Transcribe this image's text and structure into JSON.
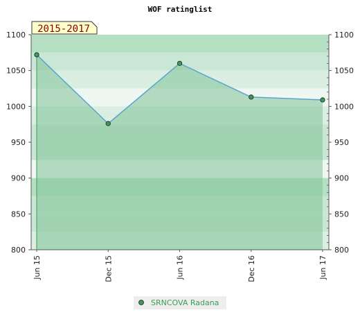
{
  "chart_data": {
    "type": "area",
    "title": "WOF ratinglist",
    "period_badge": "2015-2017",
    "xlabel": "",
    "ylabel": "",
    "categories": [
      "Jun 15",
      "Dec 15",
      "Jun 16",
      "Dec 16",
      "Jun 17"
    ],
    "ylim": [
      800,
      1100
    ],
    "yticks": [
      800,
      850,
      900,
      950,
      1000,
      1050,
      1100
    ],
    "grid": true,
    "legend_position": "bottom-center",
    "series": [
      {
        "name": "SRNCOVA Radana",
        "x": [
          "Jun 15",
          "Dec 15",
          "Jun 16",
          "Dec 16",
          "Jun 17"
        ],
        "values": [
          1072,
          976,
          1060,
          1013,
          1009
        ],
        "line_color": "#5ba3cf",
        "marker_color": "#3d9a55",
        "fill_color": "#7fc297"
      }
    ],
    "bands": [
      {
        "from": 1075,
        "to": 1100,
        "color": "#b5dfc3"
      },
      {
        "from": 1050,
        "to": 1075,
        "color": "#c9e7d4"
      },
      {
        "from": 1025,
        "to": 1050,
        "color": "#daeee2"
      },
      {
        "from": 1000,
        "to": 1025,
        "color": "#eef7f1"
      },
      {
        "from": 975,
        "to": 1000,
        "color": "#daeee2"
      },
      {
        "from": 950,
        "to": 975,
        "color": "#c9e7d4"
      },
      {
        "from": 925,
        "to": 950,
        "color": "#c9e7d4"
      },
      {
        "from": 900,
        "to": 925,
        "color": "#eef7f1"
      },
      {
        "from": 875,
        "to": 900,
        "color": "#b5dfc3"
      },
      {
        "from": 850,
        "to": 875,
        "color": "#c9e7d4"
      },
      {
        "from": 825,
        "to": 850,
        "color": "#c9e7d4"
      },
      {
        "from": 800,
        "to": 825,
        "color": "#daeee2"
      }
    ],
    "colors": {
      "axis": "#555555",
      "tick_text": "#222222",
      "title_text": "#222222",
      "badge_bg": "#ffffcc",
      "badge_text": "#8b0000",
      "legend_bg": "#eeeeee",
      "legend_text": "#3d9a55"
    }
  }
}
